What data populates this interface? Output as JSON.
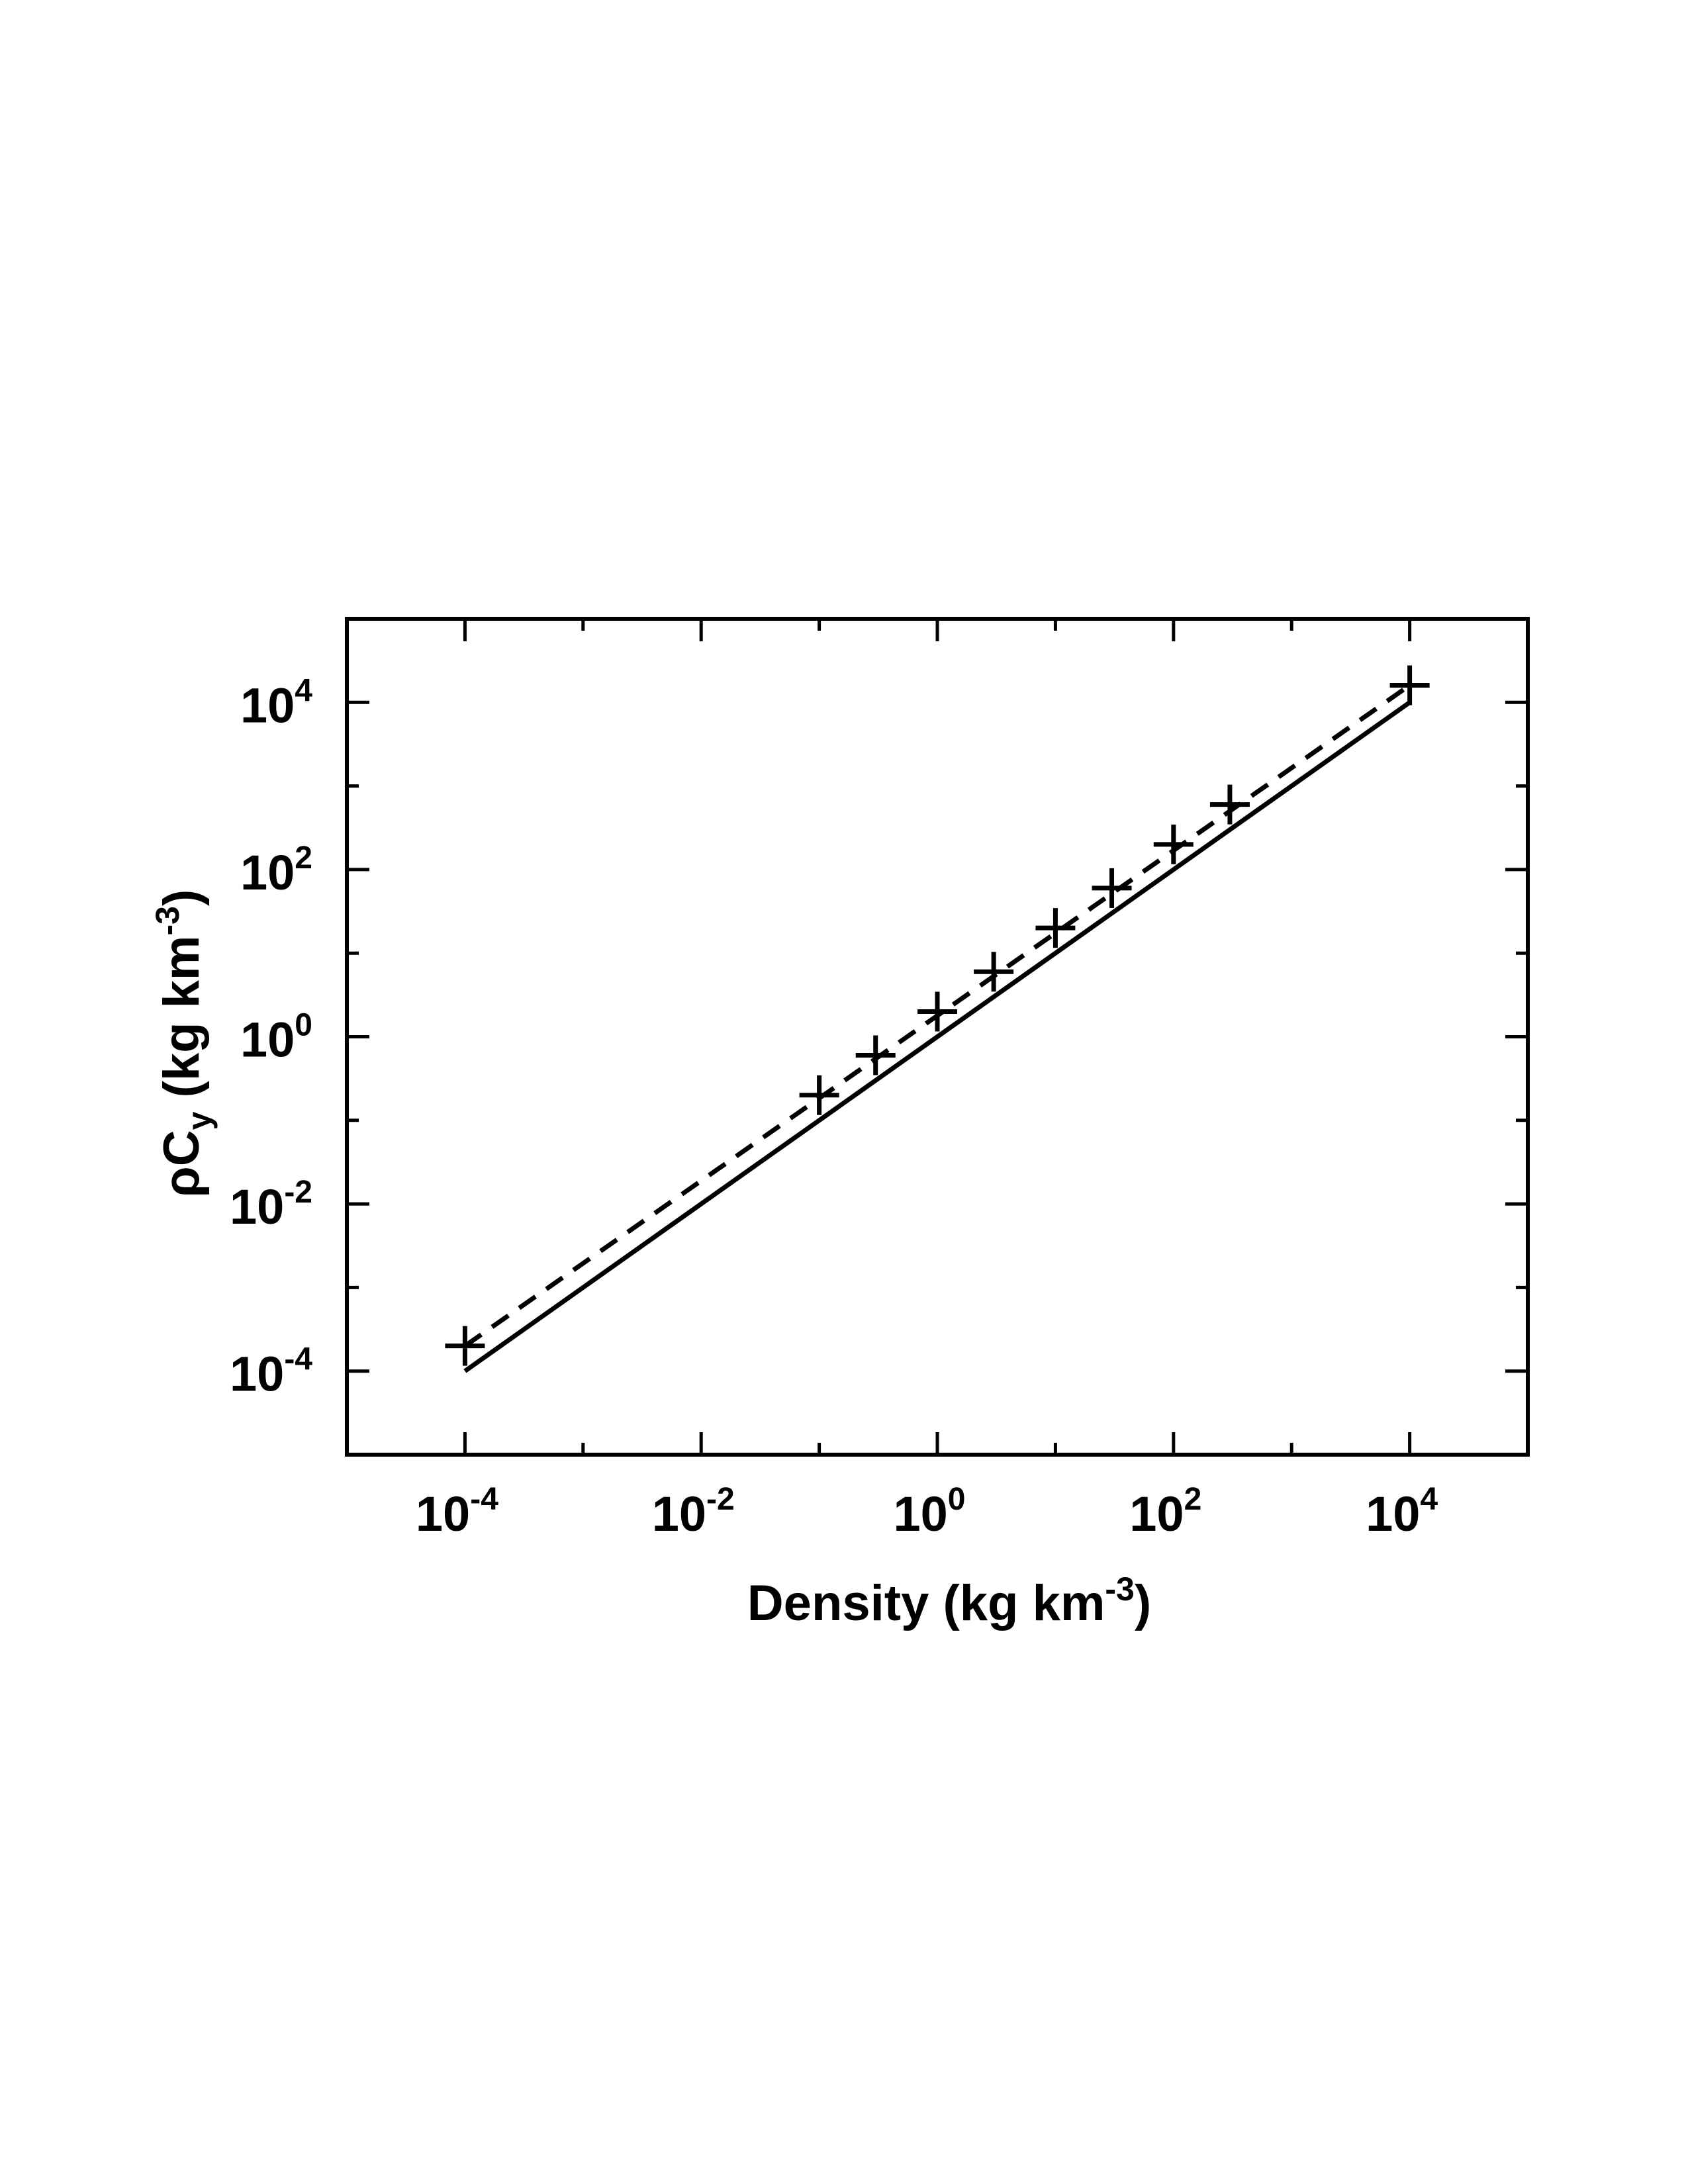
{
  "chart_data": {
    "type": "scatter",
    "title": "",
    "xlabel": {
      "main": "Density (kg km",
      "sup": "-3",
      "end": ")"
    },
    "ylabel": {
      "greek": "ρ",
      "main": "C",
      "sub": "y",
      "rest": " (kg km",
      "sup": "-3",
      "end": ")"
    },
    "x_scale": "log",
    "y_scale": "log",
    "xlim": [
      1e-05,
      100000
    ],
    "ylim": [
      1e-05,
      100000
    ],
    "x_ticks": [
      {
        "base": "10",
        "exp": "-4",
        "value": 0.0001
      },
      {
        "base": "10",
        "exp": "-2",
        "value": 0.01
      },
      {
        "base": "10",
        "exp": "0",
        "value": 1
      },
      {
        "base": "10",
        "exp": "2",
        "value": 100
      },
      {
        "base": "10",
        "exp": "4",
        "value": 10000
      }
    ],
    "y_ticks": [
      {
        "base": "10",
        "exp": "-4",
        "value": 0.0001
      },
      {
        "base": "10",
        "exp": "-2",
        "value": 0.01
      },
      {
        "base": "10",
        "exp": "0",
        "value": 1
      },
      {
        "base": "10",
        "exp": "2",
        "value": 100
      },
      {
        "base": "10",
        "exp": "4",
        "value": 10000
      }
    ],
    "grid": false,
    "legend": "none",
    "series": [
      {
        "style": "plus-markers",
        "color": "#000000",
        "points": [
          [
            0.0001,
            0.0002
          ],
          [
            0.1,
            0.2
          ],
          [
            0.3,
            0.6
          ],
          [
            1,
            2
          ],
          [
            3,
            6
          ],
          [
            10,
            20
          ],
          [
            30,
            60
          ],
          [
            100,
            200
          ],
          [
            300,
            600
          ],
          [
            10000,
            16000
          ]
        ]
      },
      {
        "style": "dashed-line",
        "color": "#000000",
        "points": [
          [
            0.0001,
            0.0002
          ],
          [
            10000,
            16000
          ]
        ]
      },
      {
        "style": "solid-line",
        "color": "#000000",
        "points": [
          [
            0.0001,
            0.0001
          ],
          [
            10000,
            10000
          ]
        ]
      }
    ]
  }
}
